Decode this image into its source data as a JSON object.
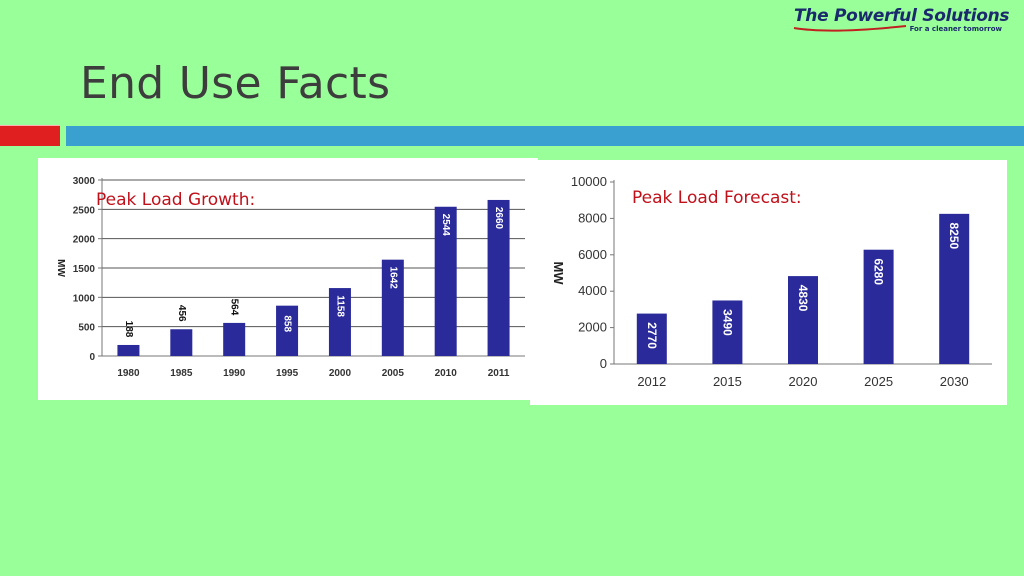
{
  "logo": {
    "name": "The Powerful Solutions",
    "tagline": "For a cleaner tomorrow"
  },
  "page_title": "End Use Facts",
  "colors": {
    "background": "#99ff99",
    "accent_red": "#e02020",
    "accent_blue": "#3aa0d0",
    "bar": "#2a2a9a",
    "label_red": "#c0101a"
  },
  "chart_data": [
    {
      "type": "bar",
      "title": "Peak Load Growth:",
      "ylabel": "MW",
      "xlabel": "",
      "categories": [
        "1980",
        "1985",
        "1990",
        "1995",
        "2000",
        "2005",
        "2010",
        "2011"
      ],
      "values": [
        188,
        456,
        564,
        858,
        1158,
        1642,
        2544,
        2660
      ],
      "data_labels": [
        "188",
        "456",
        "564",
        "858",
        "1158",
        "1642",
        "2544",
        "2660"
      ],
      "ylim": [
        0,
        3000
      ],
      "yticks": [
        0,
        500,
        1000,
        1500,
        2000,
        2500,
        3000
      ],
      "ytick_labels": [
        "0",
        "500",
        "1000",
        "1500",
        "2000",
        "2500",
        "3000"
      ],
      "grid": true
    },
    {
      "type": "bar",
      "title": "Peak Load Forecast:",
      "ylabel": "MW",
      "xlabel": "",
      "categories": [
        "2012",
        "2015",
        "2020",
        "2025",
        "2030"
      ],
      "values": [
        2770,
        3490,
        4830,
        6280,
        8250
      ],
      "data_labels": [
        "2770",
        "3490",
        "4830",
        "6280",
        "8250"
      ],
      "ylim": [
        0,
        10000
      ],
      "yticks": [
        0,
        2000,
        4000,
        6000,
        8000,
        10000
      ],
      "ytick_labels": [
        "0",
        "2000",
        "4000",
        "6000",
        "8000",
        "10000"
      ],
      "grid": false
    }
  ]
}
